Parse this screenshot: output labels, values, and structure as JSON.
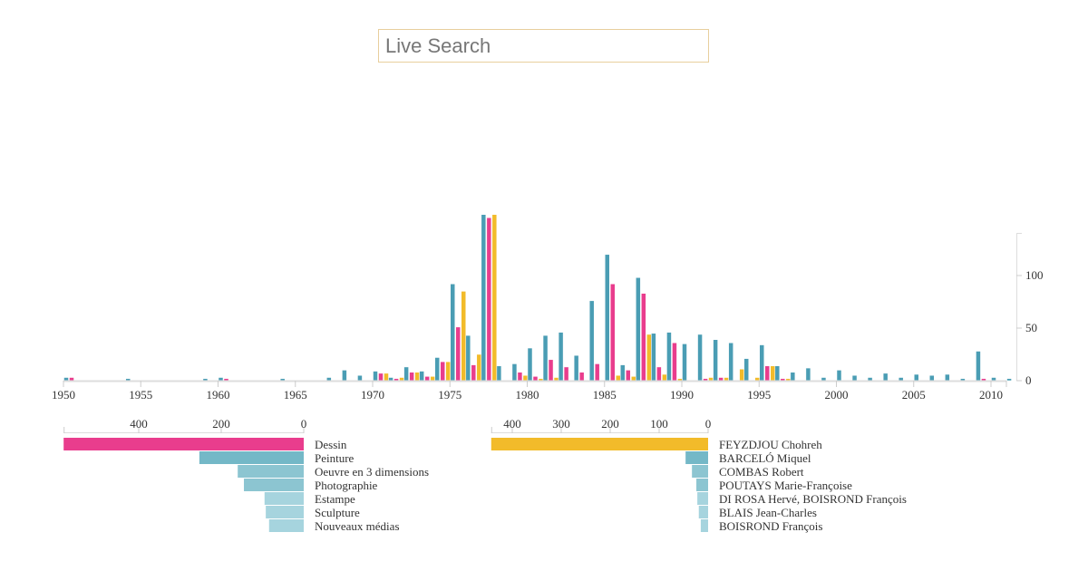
{
  "search": {
    "placeholder": "Live Search",
    "value": ""
  },
  "colors": {
    "series1": "#4a9db4",
    "series2": "#e93d8d",
    "series3": "#f2bb2a",
    "hbar_left_top": "#e93d8d",
    "hbar_right_top": "#f2bb2a",
    "hbar_shades": [
      "#74b8c7",
      "#8cc5d1",
      "#a6d4de"
    ]
  },
  "chart_data": [
    {
      "type": "bar",
      "title": "",
      "xlabel": "",
      "ylabel": "",
      "xlim": [
        1950,
        2011
      ],
      "ylim": [
        0,
        140
      ],
      "x_ticks": [
        "1950",
        "1955",
        "1960",
        "1965",
        "1970",
        "1975",
        "1980",
        "1985",
        "1990",
        "1995",
        "2000",
        "2005",
        "2010"
      ],
      "y_ticks": [
        "0",
        "50",
        "100"
      ],
      "series_names": [
        "series1",
        "series2",
        "series3"
      ],
      "data": [
        {
          "year": 1950,
          "v": [
            3,
            3,
            0
          ]
        },
        {
          "year": 1954,
          "v": [
            2,
            0,
            0
          ]
        },
        {
          "year": 1959,
          "v": [
            2,
            0,
            0
          ]
        },
        {
          "year": 1960,
          "v": [
            3,
            2,
            0
          ]
        },
        {
          "year": 1964,
          "v": [
            2,
            0,
            0
          ]
        },
        {
          "year": 1967,
          "v": [
            3,
            0,
            0
          ]
        },
        {
          "year": 1968,
          "v": [
            10,
            0,
            0
          ]
        },
        {
          "year": 1969,
          "v": [
            5,
            0,
            0
          ]
        },
        {
          "year": 1970,
          "v": [
            9,
            7,
            7
          ]
        },
        {
          "year": 1971,
          "v": [
            3,
            2,
            3
          ]
        },
        {
          "year": 1972,
          "v": [
            13,
            8,
            8
          ]
        },
        {
          "year": 1973,
          "v": [
            9,
            4,
            4
          ]
        },
        {
          "year": 1974,
          "v": [
            22,
            18,
            18
          ]
        },
        {
          "year": 1975,
          "v": [
            92,
            51,
            85
          ]
        },
        {
          "year": 1976,
          "v": [
            43,
            15,
            25
          ]
        },
        {
          "year": 1977,
          "v": [
            158,
            155,
            158
          ]
        },
        {
          "year": 1978,
          "v": [
            14,
            0,
            0
          ]
        },
        {
          "year": 1979,
          "v": [
            16,
            8,
            5
          ]
        },
        {
          "year": 1980,
          "v": [
            31,
            4,
            2
          ]
        },
        {
          "year": 1981,
          "v": [
            43,
            20,
            3
          ]
        },
        {
          "year": 1982,
          "v": [
            46,
            13,
            0
          ]
        },
        {
          "year": 1983,
          "v": [
            24,
            8,
            0
          ]
        },
        {
          "year": 1984,
          "v": [
            76,
            16,
            0
          ]
        },
        {
          "year": 1985,
          "v": [
            120,
            92,
            5
          ]
        },
        {
          "year": 1986,
          "v": [
            15,
            10,
            4
          ]
        },
        {
          "year": 1987,
          "v": [
            98,
            83,
            44
          ]
        },
        {
          "year": 1988,
          "v": [
            45,
            13,
            6
          ]
        },
        {
          "year": 1989,
          "v": [
            46,
            36,
            2
          ]
        },
        {
          "year": 1990,
          "v": [
            35,
            0,
            0
          ]
        },
        {
          "year": 1991,
          "v": [
            44,
            2,
            3
          ]
        },
        {
          "year": 1992,
          "v": [
            39,
            3,
            3
          ]
        },
        {
          "year": 1993,
          "v": [
            36,
            0,
            11
          ]
        },
        {
          "year": 1994,
          "v": [
            21,
            0,
            3
          ]
        },
        {
          "year": 1995,
          "v": [
            34,
            14,
            14
          ]
        },
        {
          "year": 1996,
          "v": [
            14,
            2,
            2
          ]
        },
        {
          "year": 1997,
          "v": [
            8,
            0,
            0
          ]
        },
        {
          "year": 1998,
          "v": [
            12,
            0,
            0
          ]
        },
        {
          "year": 1999,
          "v": [
            3,
            0,
            0
          ]
        },
        {
          "year": 2000,
          "v": [
            10,
            0,
            0
          ]
        },
        {
          "year": 2001,
          "v": [
            5,
            0,
            0
          ]
        },
        {
          "year": 2002,
          "v": [
            3,
            0,
            0
          ]
        },
        {
          "year": 2003,
          "v": [
            7,
            0,
            0
          ]
        },
        {
          "year": 2004,
          "v": [
            3,
            0,
            0
          ]
        },
        {
          "year": 2005,
          "v": [
            6,
            0,
            0
          ]
        },
        {
          "year": 2006,
          "v": [
            5,
            0,
            0
          ]
        },
        {
          "year": 2007,
          "v": [
            6,
            0,
            0
          ]
        },
        {
          "year": 2008,
          "v": [
            2,
            0,
            0
          ]
        },
        {
          "year": 2009,
          "v": [
            28,
            2,
            0
          ]
        },
        {
          "year": 2010,
          "v": [
            3,
            0,
            0
          ]
        },
        {
          "year": 2011,
          "v": [
            2,
            0,
            0
          ]
        }
      ]
    },
    {
      "type": "bar",
      "orientation": "horizontal",
      "xlim": [
        0,
        582
      ],
      "x_ticks": [
        "400",
        "200",
        "0"
      ],
      "categories": [
        "Dessin",
        "Peinture",
        "Oeuvre en 3 dimensions",
        "Photographie",
        "Estampe",
        "Sculpture",
        "Nouveaux médias"
      ],
      "values": [
        582,
        253,
        160,
        145,
        95,
        92,
        84
      ]
    },
    {
      "type": "bar",
      "orientation": "horizontal",
      "xlim": [
        0,
        443
      ],
      "x_ticks": [
        "400",
        "300",
        "200",
        "100",
        "0"
      ],
      "categories": [
        "FEYZDJOU Chohreh",
        "BARCELÓ Miquel",
        "COMBAS Robert",
        "POUTAYS Marie-Françoise",
        "DI ROSA Hervé, BOISROND François",
        "BLAIS Jean-Charles",
        "BOISROND François"
      ],
      "values": [
        443,
        46,
        33,
        24,
        22,
        19,
        15
      ]
    }
  ]
}
